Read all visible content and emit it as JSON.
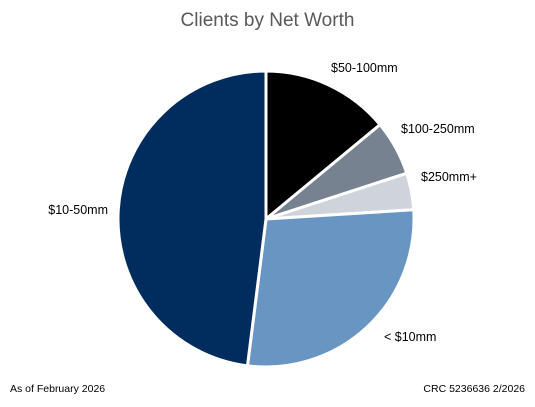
{
  "chart_data": {
    "type": "pie",
    "title": "Clients by Net Worth",
    "slices": [
      {
        "label": "$50-100mm",
        "value": 14,
        "color": "#000000"
      },
      {
        "label": "$100-250mm",
        "value": 6,
        "color": "#768290"
      },
      {
        "label": "$250mm+",
        "value": 4,
        "color": "#CFD3DA"
      },
      {
        "label": "< $10mm",
        "value": 28,
        "color": "#6995C3"
      },
      {
        "label": "$10-50mm",
        "value": 48,
        "color": "#012D5E"
      }
    ],
    "start": "12 o'clock",
    "direction": "clockwise",
    "legend": "none",
    "labels": "outside"
  },
  "footer": {
    "as_of": "As of February 2026",
    "code": "CRC 5236636 2/2026"
  }
}
